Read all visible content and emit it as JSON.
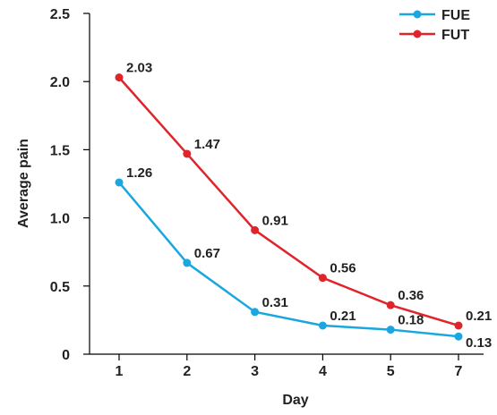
{
  "chart_data": {
    "type": "line",
    "categories": [
      "1",
      "2",
      "3",
      "4",
      "5",
      "7"
    ],
    "series": [
      {
        "name": "FUE",
        "values": [
          1.26,
          0.67,
          0.31,
          0.21,
          0.18,
          0.13
        ],
        "labels": [
          "1.26",
          "0.67",
          "0.31",
          "0.21",
          "0.18",
          "0.13"
        ],
        "color": "#1aa6e0"
      },
      {
        "name": "FUT",
        "values": [
          2.03,
          1.47,
          0.91,
          0.56,
          0.36,
          0.21
        ],
        "labels": [
          "2.03",
          "1.47",
          "0.91",
          "0.56",
          "0.36",
          "0.21"
        ],
        "color": "#e0242b"
      }
    ],
    "xlabel": "Day",
    "ylabel": "Average pain",
    "ylim": [
      0,
      2.5
    ],
    "yticks": [
      0,
      0.5,
      1.0,
      1.5,
      2.0,
      2.5
    ],
    "ytick_labels": [
      "0",
      "0.5",
      "1.0",
      "1.5",
      "2.0",
      "2.5"
    ],
    "grid": false,
    "legend_position": "top-right"
  }
}
